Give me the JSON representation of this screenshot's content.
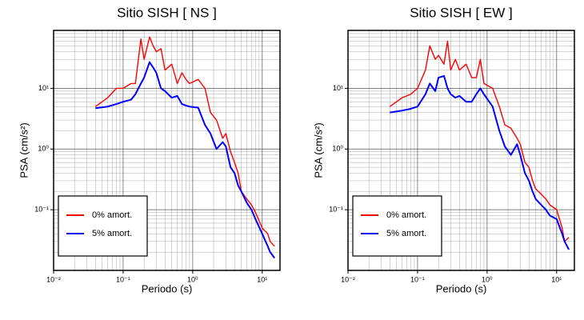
{
  "chart_data": [
    {
      "type": "line",
      "title": "Sitio SISH [ NS ]",
      "xlabel": "Periodo (s)",
      "ylabel": "PSA (cm/s²)",
      "log_x": true,
      "log_y": true,
      "grid": true,
      "legend": "lower left",
      "xlim": [
        0.01,
        18
      ],
      "ylim": [
        0.01,
        90
      ],
      "xticks": [
        {
          "value": 0.01,
          "label": "10⁻²"
        },
        {
          "value": 0.1,
          "label": "10⁻¹"
        },
        {
          "value": 1,
          "label": "10⁰"
        },
        {
          "value": 10,
          "label": "10¹"
        }
      ],
      "yticks": [
        {
          "value": 0.1,
          "label": "10⁻¹"
        },
        {
          "value": 1,
          "label": "10⁰"
        },
        {
          "value": 10,
          "label": "10¹"
        }
      ],
      "x": [
        0.04,
        0.06,
        0.08,
        0.1,
        0.13,
        0.15,
        0.18,
        0.2,
        0.24,
        0.27,
        0.3,
        0.35,
        0.4,
        0.5,
        0.6,
        0.7,
        0.8,
        0.9,
        1.2,
        1.5,
        1.8,
        2.2,
        2.7,
        3,
        3.5,
        4,
        4.5,
        5,
        6,
        7,
        8,
        10,
        12,
        13,
        15
      ],
      "series": [
        {
          "name": "0% amort.",
          "color": "#ff0000",
          "values": [
            5,
            7,
            10,
            10,
            12,
            12,
            65,
            30,
            70,
            50,
            40,
            45,
            20,
            25,
            12,
            18,
            14,
            12,
            14,
            10,
            4,
            3,
            1.5,
            1.8,
            0.9,
            0.6,
            0.4,
            0.2,
            0.15,
            0.12,
            0.09,
            0.05,
            0.04,
            0.03,
            0.025
          ]
        },
        {
          "name": "5% amort.",
          "color": "#0000ff",
          "values": [
            4.7,
            5,
            5.5,
            6,
            6.5,
            8,
            12,
            15,
            27,
            22,
            18,
            10,
            9,
            7,
            7.5,
            5.5,
            5.2,
            5,
            4.8,
            2.5,
            1.8,
            1,
            1.3,
            1.1,
            0.5,
            0.4,
            0.25,
            0.2,
            0.13,
            0.1,
            0.07,
            0.04,
            0.025,
            0.02,
            0.016
          ]
        }
      ]
    },
    {
      "type": "line",
      "title": "Sitio SISH [ EW ]",
      "xlabel": "Periodo (s)",
      "ylabel": "PSA (cm/s²)",
      "log_x": true,
      "log_y": true,
      "grid": true,
      "legend": "lower left",
      "xlim": [
        0.01,
        18
      ],
      "ylim": [
        0.01,
        90
      ],
      "xticks": [
        {
          "value": 0.01,
          "label": "10⁻²"
        },
        {
          "value": 0.1,
          "label": "10⁻¹"
        },
        {
          "value": 1,
          "label": "10⁰"
        },
        {
          "value": 10,
          "label": "10¹"
        }
      ],
      "yticks": [
        {
          "value": 0.1,
          "label": "10⁻¹"
        },
        {
          "value": 1,
          "label": "10⁰"
        },
        {
          "value": 10,
          "label": "10¹"
        }
      ],
      "x": [
        0.04,
        0.06,
        0.08,
        0.1,
        0.13,
        0.15,
        0.18,
        0.2,
        0.24,
        0.27,
        0.3,
        0.35,
        0.4,
        0.5,
        0.6,
        0.7,
        0.8,
        0.9,
        1.2,
        1.5,
        1.8,
        2.2,
        2.7,
        3,
        3.5,
        4,
        4.5,
        5,
        6,
        7,
        8,
        10,
        12,
        13,
        15
      ],
      "series": [
        {
          "name": "0% amort.",
          "color": "#ff0000",
          "values": [
            5,
            7,
            8,
            10,
            20,
            50,
            30,
            35,
            25,
            60,
            20,
            30,
            20,
            25,
            15,
            15,
            30,
            12,
            10,
            5,
            2.5,
            2.2,
            1.5,
            1.2,
            0.6,
            0.5,
            0.3,
            0.22,
            0.18,
            0.15,
            0.12,
            0.1,
            0.05,
            0.03,
            0.035
          ]
        },
        {
          "name": "5% amort.",
          "color": "#0000ff",
          "values": [
            4,
            4.3,
            4.6,
            5,
            8,
            12,
            9,
            15,
            16,
            10,
            8,
            7,
            7.5,
            6,
            6,
            8,
            10,
            8,
            5,
            2,
            1.1,
            0.8,
            1.2,
            0.8,
            0.4,
            0.3,
            0.2,
            0.15,
            0.12,
            0.1,
            0.08,
            0.07,
            0.04,
            0.03,
            0.022
          ]
        }
      ]
    }
  ]
}
